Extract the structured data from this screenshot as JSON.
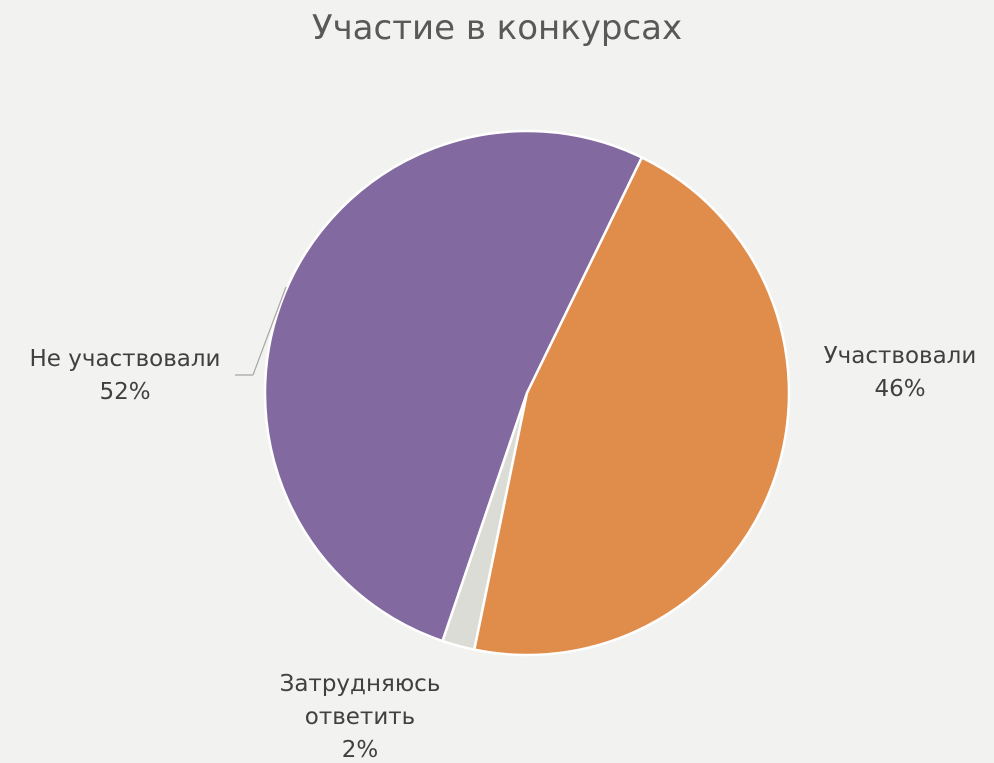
{
  "chart_data": {
    "type": "pie",
    "title": "Участие в конкурсах",
    "categories": [
      "Участвовали",
      "Затрудняюсь ответить",
      "Не участвовали"
    ],
    "values": [
      46,
      2,
      52
    ],
    "value_labels": [
      "46%",
      "2%",
      "52%"
    ],
    "colors": [
      "#e08c4b",
      "#dcdcd6",
      "#826aa0"
    ]
  }
}
